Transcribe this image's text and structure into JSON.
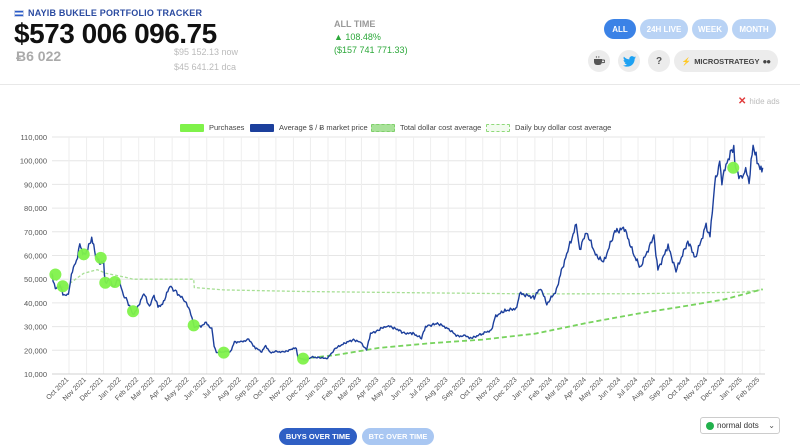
{
  "header": {
    "title": "NAYIB BUKELE PORTFOLIO TRACKER",
    "balance_usd": "$573 006 096.75",
    "balance_btc": "Ƀ6 022",
    "now_price": "$95 152.13 now",
    "dca_price": "$45 641.21 dca",
    "alltime_label": "ALL TIME",
    "alltime_pct": "▲ 108.48%",
    "alltime_usd": "($157 741 771.33)"
  },
  "range_buttons": [
    "ALL",
    "24H LIVE",
    "WEEK",
    "MONTH"
  ],
  "active_range": "ALL",
  "action_buttons": {
    "help_label": "?",
    "microstrategy_label": "MICROSTRATEGY",
    "icons": [
      "coffee-icon",
      "twitter-icon",
      "help-icon",
      "lightning-icon",
      "eyes-icon"
    ]
  },
  "hide_ads": "hide ads",
  "bottom": {
    "buys_over_time": "BUYS OVER TIME",
    "btc_over_time": "BTC OVER TIME",
    "dots_select": "normal dots"
  },
  "colors": {
    "accent": "#3b82e6",
    "accent_light": "#b9d3f5",
    "price_line": "#1c3f9c",
    "purchase_dot": "#7ff24a",
    "dca_line": "#8fd97a",
    "gain": "#2ca83a"
  },
  "chart_data": {
    "type": "line",
    "legend": [
      "Purchases",
      "Average $ / Ƀ market price",
      "Total dollar cost average",
      "Daily buy dollar cost average"
    ],
    "y_ticks": [
      10000,
      20000,
      30000,
      40000,
      50000,
      60000,
      70000,
      80000,
      90000,
      100000,
      110000
    ],
    "y_tick_labels": [
      "10,000",
      "20,000",
      "30,000",
      "40,000",
      "50,000",
      "60,000",
      "70,000",
      "80,000",
      "90,000",
      "100,000",
      "110,000"
    ],
    "ylim": [
      10000,
      110000
    ],
    "x_tick_labels": [
      "Oct 2021",
      "Nov 2021",
      "Dec 2021",
      "Jan 2022",
      "Feb 2022",
      "Mar 2022",
      "Apr 2022",
      "May 2022",
      "Jun 2022",
      "Jul 2022",
      "Aug 2022",
      "Sep 2022",
      "Oct 2022",
      "Nov 2022",
      "Dec 2022",
      "Jan 2023",
      "Feb 2023",
      "Mar 2023",
      "Apr 2023",
      "May 2023",
      "Jun 2023",
      "Jul 2023",
      "Aug 2023",
      "Sep 2023",
      "Oct 2023",
      "Nov 2023",
      "Dec 2023",
      "Jan 2024",
      "Feb 2024",
      "Mar 2024",
      "Apr 2024",
      "May 2024",
      "Jun 2024",
      "Jul 2024",
      "Aug 2024",
      "Sep 2024",
      "Oct 2024",
      "Nov 2024",
      "Dec 2024",
      "Jan 2025",
      "Feb 2025"
    ],
    "x_range": [
      "2021-09-01",
      "2025-02-10"
    ],
    "grid": true,
    "legend_position": "top",
    "series": [
      {
        "name": "Average $ / Ƀ market price",
        "points": [
          [
            "2021-09-01",
            52000
          ],
          [
            "2021-09-07",
            46000
          ],
          [
            "2021-09-15",
            47500
          ],
          [
            "2021-09-22",
            43000
          ],
          [
            "2021-09-30",
            43500
          ],
          [
            "2021-10-07",
            54000
          ],
          [
            "2021-10-14",
            57500
          ],
          [
            "2021-10-20",
            65000
          ],
          [
            "2021-10-27",
            60000
          ],
          [
            "2021-11-03",
            62500
          ],
          [
            "2021-11-10",
            67500
          ],
          [
            "2021-11-17",
            60000
          ],
          [
            "2021-11-24",
            57000
          ],
          [
            "2021-12-01",
            57000
          ],
          [
            "2021-12-04",
            48000
          ],
          [
            "2021-12-10",
            50000
          ],
          [
            "2021-12-20",
            46500
          ],
          [
            "2021-12-27",
            50500
          ],
          [
            "2022-01-05",
            43000
          ],
          [
            "2022-01-10",
            42000
          ],
          [
            "2022-01-22",
            35000
          ],
          [
            "2022-01-28",
            37000
          ],
          [
            "2022-02-10",
            44000
          ],
          [
            "2022-02-20",
            38500
          ],
          [
            "2022-02-28",
            43000
          ],
          [
            "2022-03-07",
            38500
          ],
          [
            "2022-03-15",
            39500
          ],
          [
            "2022-03-28",
            47000
          ],
          [
            "2022-04-05",
            45500
          ],
          [
            "2022-04-20",
            41500
          ],
          [
            "2022-04-30",
            38500
          ],
          [
            "2022-05-10",
            30000
          ],
          [
            "2022-05-20",
            30000
          ],
          [
            "2022-05-31",
            31500
          ],
          [
            "2022-06-10",
            29000
          ],
          [
            "2022-06-14",
            22000
          ],
          [
            "2022-06-18",
            19000
          ],
          [
            "2022-06-30",
            19500
          ],
          [
            "2022-07-13",
            19500
          ],
          [
            "2022-07-20",
            23500
          ],
          [
            "2022-07-31",
            23500
          ],
          [
            "2022-08-14",
            24500
          ],
          [
            "2022-08-26",
            21000
          ],
          [
            "2022-09-06",
            19500
          ],
          [
            "2022-09-13",
            22000
          ],
          [
            "2022-09-21",
            19000
          ],
          [
            "2022-10-01",
            19500
          ],
          [
            "2022-10-15",
            19200
          ],
          [
            "2022-10-30",
            20600
          ],
          [
            "2022-11-06",
            21000
          ],
          [
            "2022-11-09",
            17000
          ],
          [
            "2022-11-21",
            15800
          ],
          [
            "2022-12-05",
            17100
          ],
          [
            "2022-12-20",
            16800
          ],
          [
            "2022-12-31",
            16600
          ],
          [
            "2023-01-14",
            20800
          ],
          [
            "2023-01-31",
            23100
          ],
          [
            "2023-02-15",
            24500
          ],
          [
            "2023-02-28",
            23200
          ],
          [
            "2023-03-10",
            20200
          ],
          [
            "2023-03-17",
            27000
          ],
          [
            "2023-03-31",
            28500
          ],
          [
            "2023-04-14",
            30400
          ],
          [
            "2023-04-30",
            29300
          ],
          [
            "2023-05-15",
            27200
          ],
          [
            "2023-05-31",
            27100
          ],
          [
            "2023-06-15",
            25100
          ],
          [
            "2023-06-22",
            30000
          ],
          [
            "2023-06-30",
            30400
          ],
          [
            "2023-07-13",
            31400
          ],
          [
            "2023-07-31",
            29300
          ],
          [
            "2023-08-17",
            26000
          ],
          [
            "2023-08-31",
            26000
          ],
          [
            "2023-09-11",
            25100
          ],
          [
            "2023-09-30",
            27000
          ],
          [
            "2023-10-16",
            28500
          ],
          [
            "2023-10-24",
            34500
          ],
          [
            "2023-11-09",
            36700
          ],
          [
            "2023-11-30",
            37700
          ],
          [
            "2023-12-05",
            44000
          ],
          [
            "2023-12-31",
            42300
          ],
          [
            "2024-01-11",
            46500
          ],
          [
            "2024-01-22",
            39500
          ],
          [
            "2024-02-08",
            45300
          ],
          [
            "2024-02-15",
            52000
          ],
          [
            "2024-02-28",
            62000
          ],
          [
            "2024-03-14",
            73000
          ],
          [
            "2024-03-20",
            62500
          ],
          [
            "2024-04-01",
            70000
          ],
          [
            "2024-04-17",
            60500
          ],
          [
            "2024-05-01",
            57000
          ],
          [
            "2024-05-21",
            70000
          ],
          [
            "2024-06-07",
            71500
          ],
          [
            "2024-06-24",
            60000
          ],
          [
            "2024-07-05",
            55000
          ],
          [
            "2024-07-29",
            68000
          ],
          [
            "2024-08-05",
            54000
          ],
          [
            "2024-08-23",
            64000
          ],
          [
            "2024-09-06",
            53500
          ],
          [
            "2024-09-27",
            66000
          ],
          [
            "2024-10-10",
            59000
          ],
          [
            "2024-10-29",
            72500
          ],
          [
            "2024-11-05",
            68000
          ],
          [
            "2024-11-13",
            90000
          ],
          [
            "2024-11-22",
            99000
          ],
          [
            "2024-11-26",
            91500
          ],
          [
            "2024-12-05",
            99500
          ],
          [
            "2024-12-17",
            106000
          ],
          [
            "2024-12-20",
            97000
          ],
          [
            "2024-12-30",
            92000
          ],
          [
            "2025-01-07",
            96000
          ],
          [
            "2025-01-13",
            91000
          ],
          [
            "2025-01-20",
            106500
          ],
          [
            "2025-01-27",
            100000
          ],
          [
            "2025-02-03",
            96000
          ],
          [
            "2025-02-06",
            97000
          ]
        ]
      },
      {
        "name": "Total dollar cost average",
        "points": [
          [
            "2021-09-01",
            52000
          ],
          [
            "2021-09-20",
            46500
          ],
          [
            "2021-10-01",
            48000
          ],
          [
            "2021-10-27",
            52500
          ],
          [
            "2021-11-20",
            54000
          ],
          [
            "2021-12-05",
            52500
          ],
          [
            "2022-01-05",
            51000
          ],
          [
            "2022-01-22",
            50000
          ],
          [
            "2022-05-09",
            50000
          ],
          [
            "2022-05-10",
            46500
          ],
          [
            "2022-06-30",
            45500
          ],
          [
            "2022-11-18",
            44800
          ],
          [
            "2023-06-30",
            44200
          ],
          [
            "2023-12-31",
            43800
          ],
          [
            "2024-06-30",
            43900
          ],
          [
            "2024-12-31",
            44500
          ],
          [
            "2025-02-06",
            45600
          ]
        ]
      },
      {
        "name": "Daily buy dollar cost average",
        "points": [
          [
            "2022-11-18",
            16500
          ],
          [
            "2023-01-15",
            18000
          ],
          [
            "2023-04-01",
            21000
          ],
          [
            "2023-07-01",
            23000
          ],
          [
            "2023-10-01",
            24500
          ],
          [
            "2024-01-01",
            27000
          ],
          [
            "2024-04-01",
            31500
          ],
          [
            "2024-07-01",
            35500
          ],
          [
            "2024-10-01",
            39000
          ],
          [
            "2024-12-01",
            41500
          ],
          [
            "2025-02-06",
            45800
          ]
        ]
      }
    ],
    "purchases": [
      [
        "2021-09-07",
        52000
      ],
      [
        "2021-09-20",
        47000
      ],
      [
        "2021-10-27",
        60500
      ],
      [
        "2021-11-26",
        59000
      ],
      [
        "2021-12-04",
        48500
      ],
      [
        "2021-12-21",
        48800
      ],
      [
        "2022-01-22",
        36500
      ],
      [
        "2022-05-09",
        30500
      ],
      [
        "2022-07-01",
        19000
      ],
      [
        "2022-11-18",
        16500
      ],
      [
        "2024-12-16",
        97000
      ]
    ]
  }
}
